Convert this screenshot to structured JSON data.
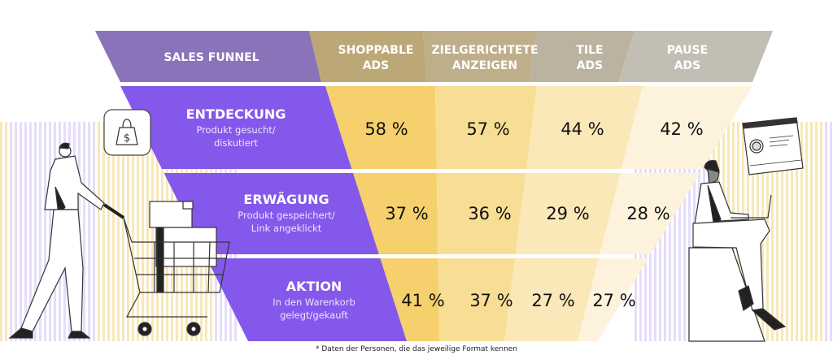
{
  "colors": {
    "header_funnel": "#8a73b9",
    "header_col_1": "#bca877",
    "header_col_2": "#beae8a",
    "header_col_3": "#bbb3a0",
    "header_col_4": "#c2beb4",
    "stage_purple": "#8458ea",
    "col_1": "#f5d06c",
    "col_2": "#f8de94",
    "col_3": "#fbe8b8",
    "col_4": "#fdf3dc",
    "stripe_yellow": "#f6dfa0",
    "stripe_purple": "#ddd2fb"
  },
  "chart_data": {
    "type": "table",
    "title": "Sales Funnel",
    "header_label": "SALES FUNNEL",
    "columns": [
      {
        "line1": "SHOPPABLE",
        "line2": "ADS"
      },
      {
        "line1": "ZIELGERICHTETE",
        "line2": "ANZEIGEN"
      },
      {
        "line1": "TILE",
        "line2": "ADS"
      },
      {
        "line1": "PAUSE",
        "line2": "ADS"
      }
    ],
    "rows": [
      {
        "stage": "ENTDECKUNG",
        "desc1": "Produkt gesucht/",
        "desc2": "diskutiert",
        "values": [
          58,
          57,
          44,
          42
        ],
        "labels": [
          "58 %",
          "57 %",
          "44 %",
          "42 %"
        ]
      },
      {
        "stage": "ERWÄGUNG",
        "desc1": "Produkt gespeichert/",
        "desc2": "Link angeklickt",
        "values": [
          37,
          36,
          29,
          28
        ],
        "labels": [
          "37 %",
          "36 %",
          "29 %",
          "28 %"
        ]
      },
      {
        "stage": "AKTION",
        "desc1": "In den Warenkorb",
        "desc2": "gelegt/gekauft",
        "values": [
          41,
          37,
          27,
          27
        ],
        "labels": [
          "41 %",
          "37 %",
          "27 %",
          "27 %"
        ]
      }
    ],
    "unit": "%",
    "footnote": "* Daten der Personen, die das jeweilige Format kennen"
  },
  "icons": {
    "shopping_bag": "shopping-bag-dollar-icon",
    "shopper": "shopper-with-cart-illustration",
    "laptop_person": "person-with-laptop-illustration"
  }
}
